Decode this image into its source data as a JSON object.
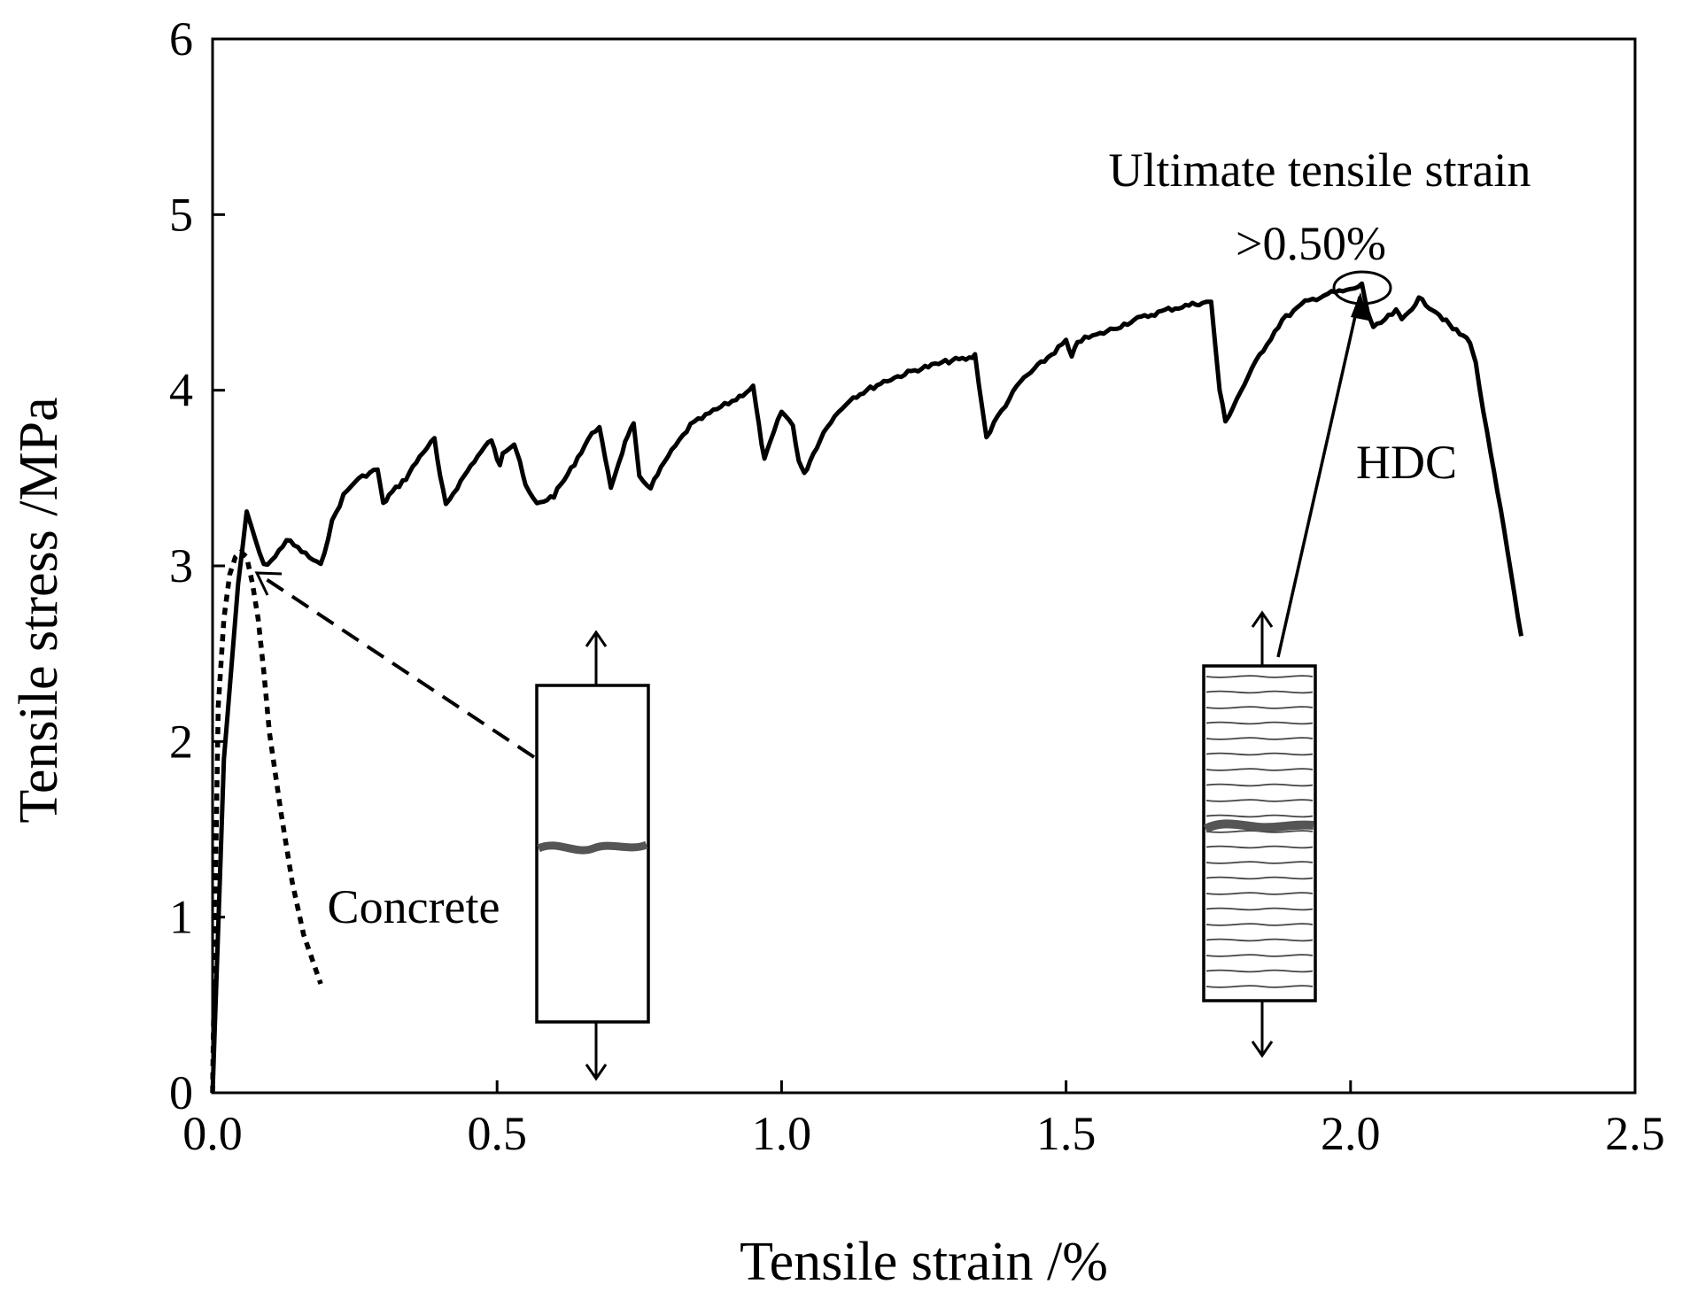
{
  "chart_data": {
    "type": "line",
    "title": "",
    "xlabel": "Tensile strain /%",
    "ylabel": "Tensile stress /MPa",
    "xlim": [
      0,
      2.5
    ],
    "ylim": [
      0,
      6
    ],
    "x_ticks": [
      0,
      0.5,
      1.0,
      1.5,
      2.0,
      2.5
    ],
    "x_tick_labels": [
      "0.0",
      "0.5",
      "1.0",
      "1.5",
      "2.0",
      "2.5"
    ],
    "y_ticks": [
      0,
      1,
      2,
      3,
      4,
      5,
      6
    ],
    "y_tick_labels": [
      "0",
      "1",
      "2",
      "3",
      "4",
      "5",
      "6"
    ],
    "grid": false,
    "series": [
      {
        "name": "HDC",
        "style": "solid",
        "x": [
          0,
          0.02,
          0.045,
          0.06,
          0.075,
          0.09,
          0.11,
          0.13,
          0.15,
          0.17,
          0.19,
          0.21,
          0.23,
          0.25,
          0.27,
          0.29,
          0.3,
          0.31,
          0.34,
          0.37,
          0.39,
          0.4,
          0.41,
          0.43,
          0.46,
          0.49,
          0.5,
          0.505,
          0.51,
          0.53,
          0.54,
          0.55,
          0.57,
          0.6,
          0.63,
          0.66,
          0.68,
          0.69,
          0.7,
          0.72,
          0.73,
          0.74,
          0.75,
          0.77,
          0.8,
          0.84,
          0.88,
          0.92,
          0.95,
          0.96,
          0.97,
          0.98,
          1.0,
          1.02,
          1.03,
          1.04,
          1.05,
          1.08,
          1.12,
          1.18,
          1.24,
          1.3,
          1.33,
          1.34,
          1.36,
          1.38,
          1.42,
          1.48,
          1.5,
          1.51,
          1.52,
          1.56,
          1.62,
          1.68,
          1.74,
          1.755,
          1.77,
          1.78,
          1.8,
          1.84,
          1.88,
          1.92,
          1.96,
          2.0,
          2.02,
          2.03,
          2.04,
          2.06,
          2.08,
          2.09,
          2.12,
          2.15,
          2.18,
          2.21,
          2.22,
          2.24,
          2.27,
          2.3
        ],
        "values": [
          0,
          1.9,
          2.9,
          3.3,
          3.15,
          3.0,
          3.05,
          3.15,
          3.1,
          3.05,
          3.0,
          3.25,
          3.4,
          3.48,
          3.52,
          3.55,
          3.35,
          3.4,
          3.5,
          3.65,
          3.72,
          3.5,
          3.35,
          3.45,
          3.6,
          3.72,
          3.6,
          3.58,
          3.65,
          3.7,
          3.6,
          3.45,
          3.35,
          3.4,
          3.55,
          3.72,
          3.8,
          3.6,
          3.45,
          3.65,
          3.75,
          3.8,
          3.5,
          3.45,
          3.62,
          3.8,
          3.88,
          3.95,
          4.02,
          3.8,
          3.6,
          3.7,
          3.88,
          3.8,
          3.6,
          3.52,
          3.6,
          3.8,
          3.95,
          4.05,
          4.12,
          4.17,
          4.18,
          4.2,
          3.73,
          3.85,
          4.05,
          4.22,
          4.28,
          4.18,
          4.28,
          4.32,
          4.4,
          4.46,
          4.5,
          4.5,
          4.0,
          3.82,
          3.95,
          4.2,
          4.4,
          4.5,
          4.55,
          4.57,
          4.6,
          4.45,
          4.35,
          4.4,
          4.45,
          4.4,
          4.52,
          4.45,
          4.35,
          4.28,
          4.15,
          3.75,
          3.2,
          2.6
        ]
      },
      {
        "name": "Concrete",
        "style": "dotted",
        "x": [
          0,
          0.005,
          0.01,
          0.02,
          0.03,
          0.04,
          0.05,
          0.06,
          0.07,
          0.08,
          0.09,
          0.1,
          0.12,
          0.14,
          0.16,
          0.19
        ],
        "values": [
          0,
          1.2,
          2.2,
          2.7,
          2.95,
          3.05,
          3.08,
          3.05,
          2.9,
          2.7,
          2.4,
          2.05,
          1.6,
          1.2,
          0.9,
          0.62
        ]
      }
    ],
    "annotations": [
      {
        "text": "Ultimate tensile strain",
        "target": "peak"
      },
      {
        "text": ">0.50%",
        "target": "peak"
      },
      {
        "text": "HDC",
        "target": "HDC"
      },
      {
        "text": "Concrete",
        "target": "Concrete"
      }
    ]
  }
}
